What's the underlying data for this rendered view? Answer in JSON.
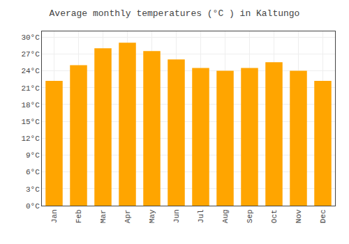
{
  "chart_data": {
    "type": "bar",
    "title": "Average monthly temperatures (°C ) in Kaltungo",
    "categories": [
      "Jan",
      "Feb",
      "Mar",
      "Apr",
      "May",
      "Jun",
      "Jul",
      "Aug",
      "Sep",
      "Oct",
      "Nov",
      "Dec"
    ],
    "values": [
      22.2,
      25.0,
      28.0,
      29.0,
      27.5,
      26.0,
      24.5,
      24.0,
      24.5,
      25.5,
      24.0,
      22.2
    ],
    "color": "#FFA500",
    "ylim": [
      0,
      31
    ],
    "yticks": [
      {
        "value": 0,
        "label": "0°C"
      },
      {
        "value": 3,
        "label": "3°C"
      },
      {
        "value": 6,
        "label": "6°C"
      },
      {
        "value": 9,
        "label": "9°C"
      },
      {
        "value": 12,
        "label": "12°C"
      },
      {
        "value": 15,
        "label": "15°C"
      },
      {
        "value": 18,
        "label": "18°C"
      },
      {
        "value": 21,
        "label": "21°C"
      },
      {
        "value": 24,
        "label": "24°C"
      },
      {
        "value": 27,
        "label": "27°C"
      },
      {
        "value": 30,
        "label": "30°C"
      }
    ],
    "grid": true
  }
}
